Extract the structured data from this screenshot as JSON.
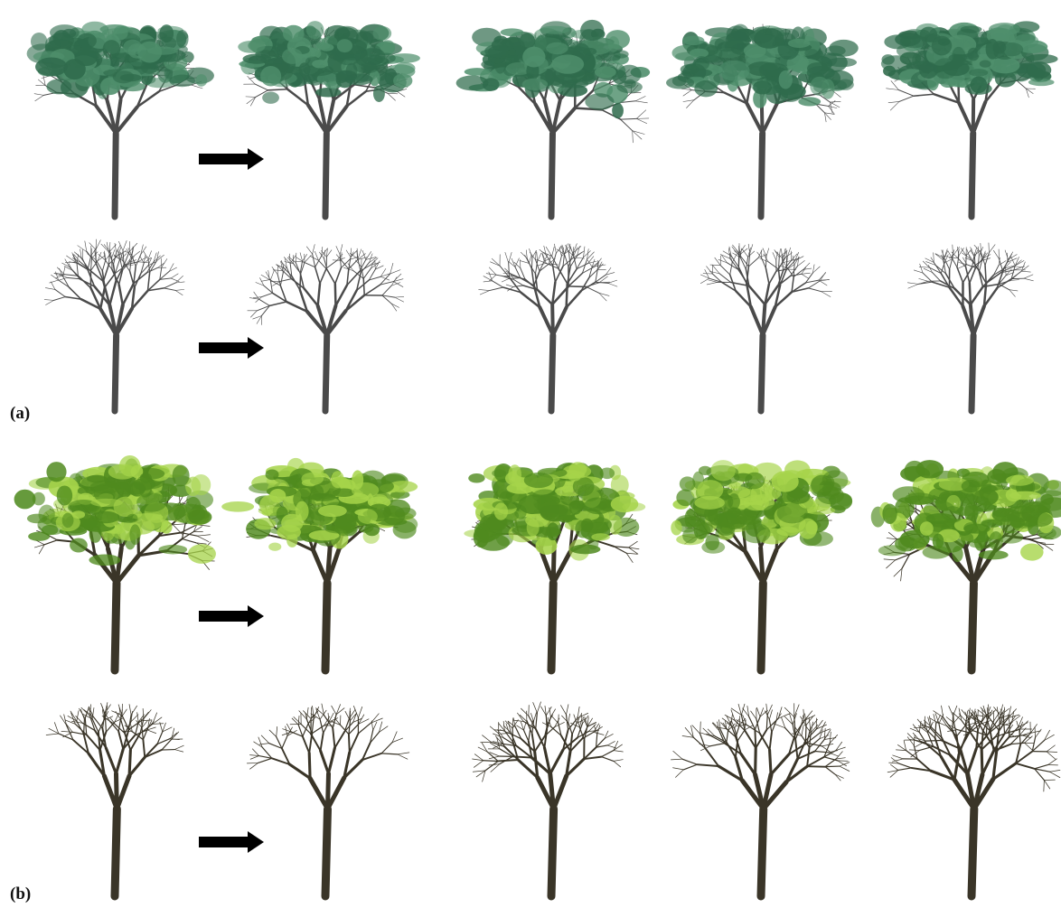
{
  "figure": {
    "panels": [
      {
        "label": "(a)",
        "foliage_color": "#2f6b4c",
        "foliage_highlight": "#4f8f6c",
        "branch_color": "#4a4a4a",
        "rows": [
          "foliage",
          "branches"
        ],
        "columns": [
          "input-tree",
          "result-1",
          "result-2",
          "result-3",
          "result-4"
        ]
      },
      {
        "label": "(b)",
        "foliage_color": "#4f8a1e",
        "foliage_highlight": "#a6d44a",
        "branch_color": "#3a3528",
        "rows": [
          "foliage",
          "branches"
        ],
        "columns": [
          "input-tree",
          "result-1",
          "result-2",
          "result-3",
          "result-4"
        ]
      }
    ],
    "arrow_icon": "right-arrow-icon",
    "arrow_color": "#000000"
  }
}
